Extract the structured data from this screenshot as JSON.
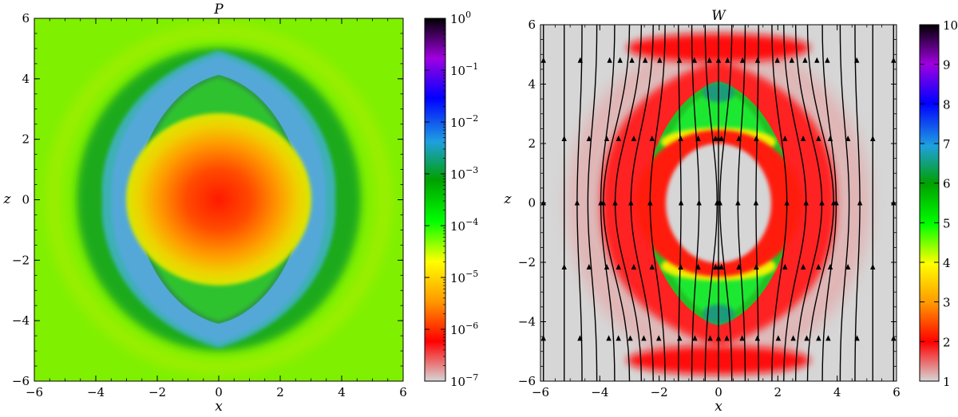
{
  "chart_data": [
    {
      "type": "heatmap",
      "title": "P",
      "xlabel": "x",
      "ylabel": "z",
      "xlim": [
        -6,
        6
      ],
      "ylim": [
        -6,
        6
      ],
      "xticks": [
        "−6",
        "−4",
        "−2",
        "0",
        "2",
        "4",
        "6"
      ],
      "yticks": [
        "−6",
        "−4",
        "−2",
        "0",
        "2",
        "4",
        "6"
      ],
      "colorbar": {
        "scale": "log",
        "range": [
          1e-07,
          1
        ],
        "tick_bases": [
          "10",
          "10",
          "10",
          "10",
          "10",
          "10",
          "10",
          "10"
        ],
        "tick_exponents": [
          "−7",
          "−6",
          "−5",
          "−4",
          "−3",
          "−2",
          "−1",
          "0"
        ],
        "colormap": [
          "#d6d6d6",
          "#ff0000",
          "#ff9900",
          "#ffff00",
          "#00ff00",
          "#00a000",
          "#1fa0e0",
          "#0000ff",
          "#a000e0",
          "#000000"
        ]
      },
      "features": {
        "core_peak": {
          "center": [
            0,
            0
          ],
          "radius": 2.1,
          "value": 1e-06
        },
        "shell": {
          "half_width_x": 3.3,
          "half_height_z": 4.5,
          "value": 0.01
        },
        "inner_boundary": {
          "half_width_x": 2.8,
          "half_height_z": 4.1
        },
        "background_value": 0.0001
      }
    },
    {
      "type": "heatmap",
      "title": "W",
      "xlabel": "x",
      "ylabel": "z",
      "xlim": [
        -6,
        6
      ],
      "ylim": [
        -6,
        6
      ],
      "xticks": [
        "−6",
        "−4",
        "−2",
        "0",
        "2",
        "4",
        "6"
      ],
      "yticks": [
        "−6",
        "−4",
        "−2",
        "0",
        "2",
        "4",
        "6"
      ],
      "colorbar": {
        "scale": "linear",
        "range": [
          1,
          10
        ],
        "ticks": [
          "1",
          "2",
          "3",
          "4",
          "5",
          "6",
          "7",
          "8",
          "9",
          "10"
        ],
        "colormap": [
          "#d6d6d6",
          "#ff0000",
          "#ff9900",
          "#ffff00",
          "#00ff00",
          "#00a000",
          "#1fa0e0",
          "#0000ff",
          "#a000e0",
          "#000000"
        ]
      },
      "features": {
        "background_value": 1,
        "shell_value": 2,
        "lens": {
          "half_width_x": 2.8,
          "half_height_z": 4.0,
          "value": 5
        },
        "ring": {
          "center": [
            0,
            0
          ],
          "radius_x": 2.3,
          "radius_z": 2.0,
          "value": 2
        },
        "streamlines": "field lines along z, bent around the lens, with arrows"
      }
    }
  ]
}
